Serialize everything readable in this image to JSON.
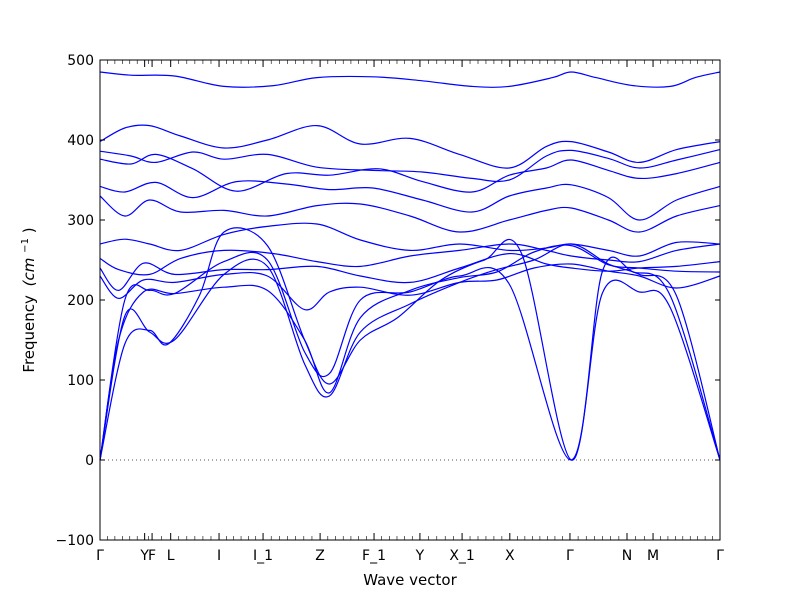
{
  "chart_data": {
    "type": "line",
    "title": "",
    "xlabel": "Wave vector",
    "ylabel": "Frequency",
    "ylabel_unit": "(cm",
    "ylabel_unit_exp": "−1",
    "ylabel_unit_close": ")",
    "ylim": [
      -100,
      500
    ],
    "yticks": [
      -100,
      0,
      100,
      200,
      300,
      400,
      500
    ],
    "xticks": [
      {
        "label": "Γ",
        "x": 0.0
      },
      {
        "label": "Y",
        "x": 0.072
      },
      {
        "label": "F",
        "x": 0.084
      },
      {
        "label": "L",
        "x": 0.114
      },
      {
        "label": "I",
        "x": 0.192
      },
      {
        "label": "I_1",
        "x": 0.263
      },
      {
        "label": "Z",
        "x": 0.355
      },
      {
        "label": "F_1",
        "x": 0.442
      },
      {
        "label": "Y",
        "x": 0.516
      },
      {
        "label": "X_1",
        "x": 0.584
      },
      {
        "label": "X",
        "x": 0.661
      },
      {
        "label": "Γ",
        "x": 0.758
      },
      {
        "label": "N",
        "x": 0.85
      },
      {
        "label": "M",
        "x": 0.892
      },
      {
        "label": "Γ",
        "x": 1.0
      }
    ],
    "zero_line": 0,
    "line_color": "#0000ff",
    "series": [
      {
        "x": [
          0,
          0.05,
          0.12,
          0.2,
          0.28,
          0.35,
          0.44,
          0.52,
          0.6,
          0.66,
          0.73,
          0.76,
          0.8,
          0.86,
          0.92,
          0.96,
          1
        ],
        "y": [
          485,
          481,
          480,
          467,
          468,
          478,
          479,
          474,
          467,
          467,
          478,
          485,
          478,
          468,
          467,
          478,
          485
        ]
      },
      {
        "x": [
          0,
          0.04,
          0.08,
          0.13,
          0.2,
          0.27,
          0.35,
          0.42,
          0.5,
          0.58,
          0.66,
          0.72,
          0.76,
          0.82,
          0.87,
          0.93,
          1
        ],
        "y": [
          398,
          415,
          418,
          405,
          390,
          400,
          418,
          395,
          402,
          382,
          365,
          392,
          398,
          385,
          372,
          388,
          398
        ]
      },
      {
        "x": [
          0,
          0.05,
          0.09,
          0.15,
          0.2,
          0.27,
          0.35,
          0.44,
          0.52,
          0.6,
          0.66,
          0.72,
          0.76,
          0.82,
          0.87,
          0.93,
          1
        ],
        "y": [
          386,
          380,
          372,
          385,
          376,
          382,
          366,
          362,
          360,
          352,
          350,
          380,
          387,
          377,
          365,
          375,
          388
        ]
      },
      {
        "x": [
          0,
          0.05,
          0.09,
          0.15,
          0.22,
          0.3,
          0.37,
          0.45,
          0.52,
          0.6,
          0.66,
          0.72,
          0.76,
          0.82,
          0.87,
          0.93,
          1
        ],
        "y": [
          376,
          370,
          382,
          364,
          336,
          358,
          356,
          364,
          348,
          335,
          356,
          365,
          375,
          362,
          352,
          358,
          372
        ]
      },
      {
        "x": [
          0,
          0.04,
          0.09,
          0.15,
          0.22,
          0.3,
          0.37,
          0.44,
          0.52,
          0.6,
          0.66,
          0.72,
          0.76,
          0.82,
          0.87,
          0.93,
          1
        ],
        "y": [
          342,
          335,
          347,
          328,
          348,
          345,
          338,
          340,
          325,
          310,
          330,
          340,
          344,
          328,
          300,
          325,
          342
        ]
      },
      {
        "x": [
          0,
          0.04,
          0.08,
          0.13,
          0.2,
          0.27,
          0.35,
          0.42,
          0.5,
          0.58,
          0.66,
          0.72,
          0.76,
          0.82,
          0.87,
          0.93,
          1
        ],
        "y": [
          330,
          305,
          325,
          310,
          312,
          305,
          318,
          320,
          305,
          285,
          300,
          312,
          315,
          300,
          285,
          305,
          318
        ]
      },
      {
        "x": [
          0,
          0.04,
          0.08,
          0.13,
          0.2,
          0.27,
          0.35,
          0.42,
          0.5,
          0.58,
          0.66,
          0.72,
          0.76,
          0.82,
          0.87,
          0.93,
          1
        ],
        "y": [
          270,
          276,
          270,
          262,
          282,
          292,
          295,
          275,
          262,
          270,
          262,
          265,
          270,
          262,
          255,
          272,
          270
        ]
      },
      {
        "x": [
          0,
          0.03,
          0.08,
          0.13,
          0.2,
          0.28,
          0.35,
          0.42,
          0.5,
          0.58,
          0.66,
          0.72,
          0.76,
          0.82,
          0.87,
          0.93,
          1
        ],
        "y": [
          252,
          238,
          232,
          252,
          262,
          258,
          248,
          242,
          255,
          262,
          270,
          262,
          255,
          250,
          248,
          262,
          270
        ]
      },
      {
        "x": [
          0,
          0.03,
          0.07,
          0.12,
          0.2,
          0.27,
          0.35,
          0.42,
          0.5,
          0.58,
          0.66,
          0.72,
          0.76,
          0.82,
          0.87,
          0.93,
          1
        ],
        "y": [
          240,
          212,
          246,
          232,
          238,
          238,
          242,
          230,
          222,
          240,
          258,
          245,
          240,
          236,
          240,
          242,
          248
        ]
      },
      {
        "x": [
          0,
          0.03,
          0.07,
          0.12,
          0.2,
          0.27,
          0.33,
          0.37,
          0.42,
          0.5,
          0.58,
          0.64,
          0.7,
          0.76,
          0.82,
          0.87,
          0.93,
          1
        ],
        "y": [
          230,
          202,
          225,
          222,
          232,
          230,
          188,
          210,
          216,
          206,
          222,
          225,
          240,
          245,
          236,
          230,
          215,
          230
        ]
      },
      {
        "x": [
          0,
          0.03,
          0.07,
          0.12,
          0.2,
          0.27,
          0.33,
          0.37,
          0.42,
          0.5,
          0.58,
          0.64,
          0.7,
          0.76,
          0.82,
          0.87,
          0.93,
          1
        ],
        "y": [
          0,
          150,
          210,
          208,
          216,
          212,
          150,
          84,
          178,
          212,
          228,
          235,
          260,
          268,
          244,
          240,
          236,
          235
        ]
      },
      {
        "x": [
          0,
          0.04,
          0.08,
          0.12,
          0.2,
          0.27,
          0.33,
          0.37,
          0.42,
          0.5,
          0.58,
          0.64,
          0.7,
          0.76,
          0.82,
          0.87,
          0.93,
          1
        ],
        "y": [
          0,
          180,
          160,
          150,
          232,
          242,
          120,
          80,
          160,
          195,
          222,
          238,
          250,
          270,
          245,
          232,
          205,
          0
        ]
      },
      {
        "x": [
          0,
          0.04,
          0.08,
          0.11,
          0.16,
          0.2,
          0.27,
          0.33,
          0.37,
          0.42,
          0.48,
          0.55,
          0.62,
          0.68,
          0.76,
          0.81,
          0.87,
          0.92,
          1
        ],
        "y": [
          0,
          145,
          162,
          145,
          205,
          285,
          268,
          150,
          95,
          150,
          178,
          225,
          250,
          258,
          0,
          208,
          210,
          190,
          0
        ]
      },
      {
        "x": [
          0,
          0.04,
          0.08,
          0.12,
          0.2,
          0.27,
          0.33,
          0.37,
          0.42,
          0.5,
          0.58,
          0.66,
          0.76,
          0.81,
          0.86,
          0.92,
          1
        ],
        "y": [
          0,
          200,
          212,
          208,
          248,
          250,
          135,
          108,
          200,
          210,
          230,
          220,
          0,
          235,
          235,
          205,
          0
        ]
      }
    ]
  }
}
